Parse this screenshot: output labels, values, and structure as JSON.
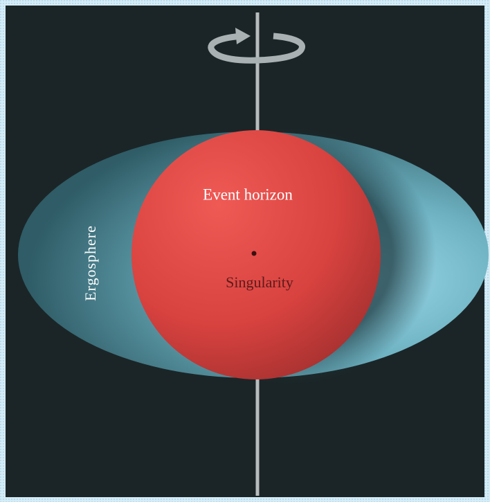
{
  "nodes": [
    {
      "label": "Ergosphere"
    },
    {
      "label": "Event horizon"
    },
    {
      "label": "Singularity"
    }
  ]
}
